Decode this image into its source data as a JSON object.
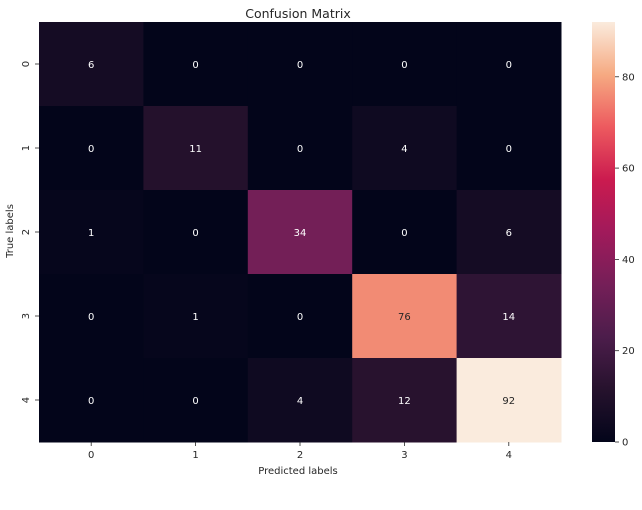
{
  "chart_data": {
    "type": "heatmap",
    "title": "Confusion Matrix",
    "xlabel": "Predicted labels",
    "ylabel": "True labels",
    "x_categories": [
      "0",
      "1",
      "2",
      "3",
      "4"
    ],
    "y_categories": [
      "0",
      "1",
      "2",
      "3",
      "4"
    ],
    "values": [
      [
        6,
        0,
        0,
        0,
        0
      ],
      [
        0,
        11,
        0,
        4,
        0
      ],
      [
        1,
        0,
        34,
        0,
        6
      ],
      [
        0,
        1,
        0,
        76,
        14
      ],
      [
        0,
        0,
        4,
        12,
        92
      ]
    ],
    "colorbar": {
      "min": 0,
      "max": 92,
      "ticks": [
        "0",
        "20",
        "40",
        "60",
        "80"
      ],
      "colormap": "rocket"
    },
    "colors": {
      "light_text": "#ffffff",
      "dark_text": "#262626"
    }
  }
}
